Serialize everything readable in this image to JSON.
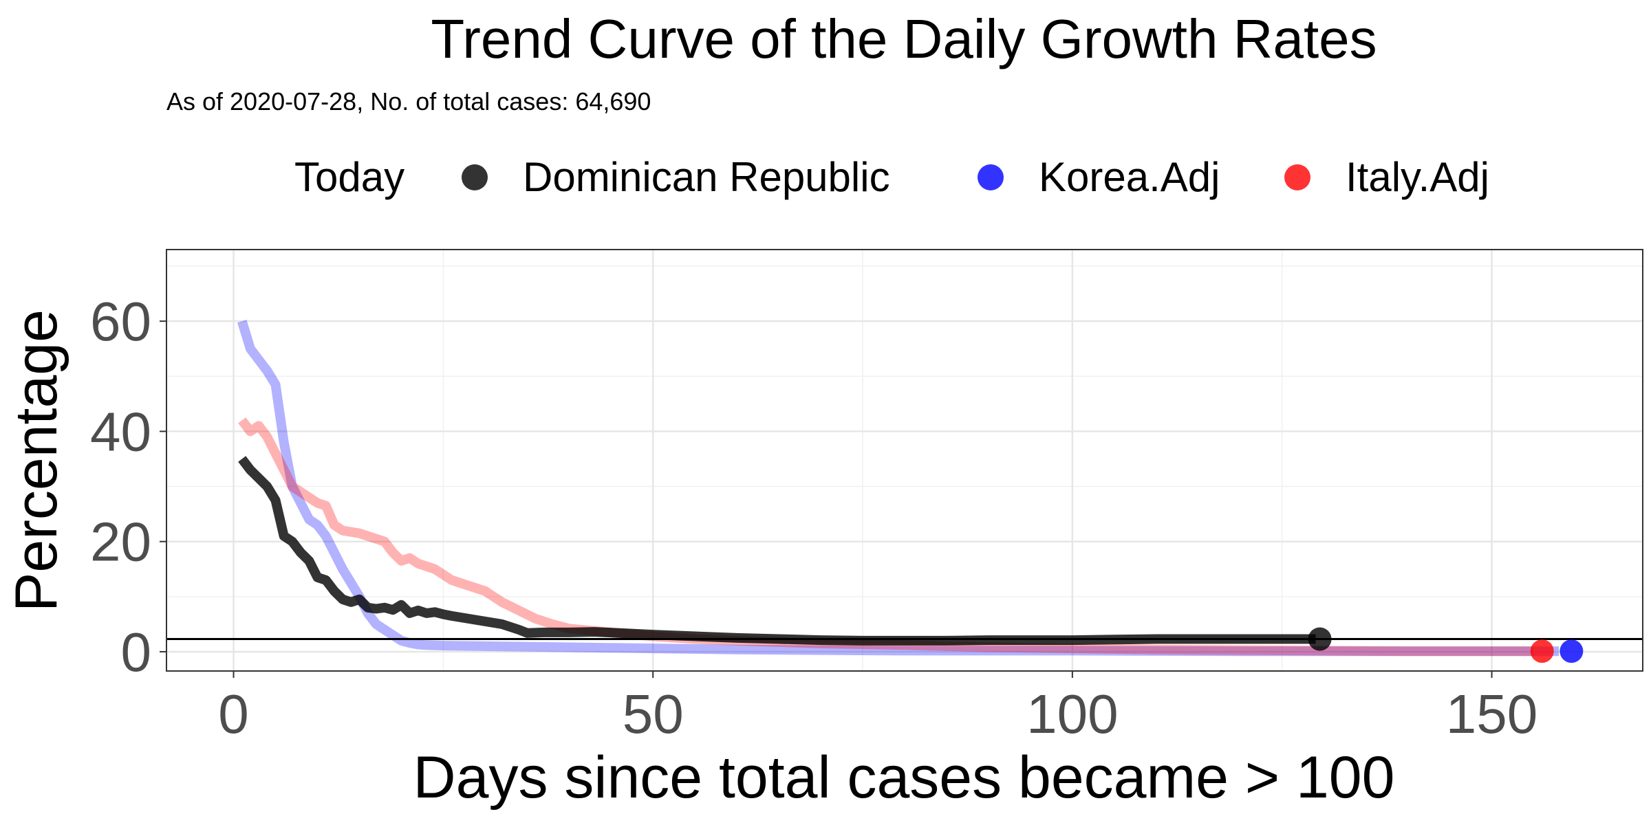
{
  "chart_data": {
    "type": "line",
    "title": "Trend Curve of the Daily Growth Rates",
    "subtitle": "As of 2020-07-28, No. of total cases: 64,690",
    "xlabel": "Days since total cases became > 100",
    "ylabel": "Percentage",
    "xlim": [
      -8,
      168
    ],
    "ylim": [
      -3.5,
      73
    ],
    "x_ticks": [
      0,
      50,
      100,
      150
    ],
    "y_ticks": [
      0,
      20,
      40,
      60
    ],
    "grid": true,
    "legend": {
      "title": "Today",
      "position": "top",
      "entries": [
        {
          "label": "Dominican Republic",
          "color": "#000000"
        },
        {
          "label": "Korea.Adj",
          "color": "#0000ff"
        },
        {
          "label": "Italy.Adj",
          "color": "#ff0000"
        }
      ]
    },
    "reference_line_y": 2.3,
    "series": [
      {
        "name": "Korea.Adj",
        "color": "#0000ff",
        "opacity": 0.3,
        "points": [
          [
            1,
            60
          ],
          [
            2,
            55
          ],
          [
            3,
            53
          ],
          [
            4,
            51
          ],
          [
            5,
            48.5
          ],
          [
            6,
            38
          ],
          [
            7,
            30
          ],
          [
            8,
            27
          ],
          [
            9,
            24
          ],
          [
            10,
            23
          ],
          [
            11,
            21
          ],
          [
            12,
            18
          ],
          [
            13,
            15
          ],
          [
            14,
            12.5
          ],
          [
            15,
            10
          ],
          [
            16,
            7
          ],
          [
            17,
            5
          ],
          [
            18,
            4
          ],
          [
            19,
            3
          ],
          [
            20,
            2
          ],
          [
            21,
            1.6
          ],
          [
            22,
            1.3
          ],
          [
            23,
            1.2
          ],
          [
            25,
            1.1
          ],
          [
            30,
            1.0
          ],
          [
            40,
            0.8
          ],
          [
            50,
            0.6
          ],
          [
            60,
            0.4
          ],
          [
            70,
            0.3
          ],
          [
            80,
            0.2
          ],
          [
            100,
            0.2
          ],
          [
            120,
            0.1
          ],
          [
            140,
            0.1
          ],
          [
            158,
            0.1
          ]
        ],
        "today": {
          "x": 159.5,
          "y": 0.1
        }
      },
      {
        "name": "Italy.Adj",
        "color": "#ff0000",
        "opacity": 0.3,
        "points": [
          [
            1,
            42
          ],
          [
            2,
            40
          ],
          [
            3,
            41
          ],
          [
            4,
            39
          ],
          [
            5,
            36
          ],
          [
            6,
            33
          ],
          [
            7,
            30
          ],
          [
            8,
            29
          ],
          [
            9,
            28
          ],
          [
            10,
            27
          ],
          [
            11,
            26.5
          ],
          [
            12,
            23
          ],
          [
            13,
            22
          ],
          [
            15,
            21.5
          ],
          [
            17,
            20.5
          ],
          [
            18,
            20
          ],
          [
            19,
            18
          ],
          [
            20,
            16.5
          ],
          [
            21,
            17
          ],
          [
            22,
            16
          ],
          [
            24,
            15
          ],
          [
            26,
            13
          ],
          [
            28,
            12
          ],
          [
            30,
            11
          ],
          [
            32,
            9
          ],
          [
            34,
            7.5
          ],
          [
            36,
            6
          ],
          [
            38,
            5
          ],
          [
            40,
            4.2
          ],
          [
            45,
            3.5
          ],
          [
            50,
            2.8
          ],
          [
            55,
            2.3
          ],
          [
            60,
            2
          ],
          [
            70,
            1.5
          ],
          [
            80,
            1.2
          ],
          [
            90,
            0.8
          ],
          [
            100,
            0.6
          ],
          [
            110,
            0.4
          ],
          [
            120,
            0.3
          ],
          [
            130,
            0.2
          ],
          [
            140,
            0.1
          ],
          [
            155,
            0.1
          ]
        ],
        "today": {
          "x": 156,
          "y": 0.1
        }
      },
      {
        "name": "Dominican Republic",
        "color": "#000000",
        "opacity": 0.8,
        "points": [
          [
            1,
            35
          ],
          [
            2,
            33
          ],
          [
            3,
            31.5
          ],
          [
            4,
            30
          ],
          [
            5,
            27.5
          ],
          [
            6,
            21
          ],
          [
            7,
            20
          ],
          [
            8,
            18
          ],
          [
            9,
            16.5
          ],
          [
            10,
            13.5
          ],
          [
            11,
            13
          ],
          [
            12,
            11
          ],
          [
            13,
            9.5
          ],
          [
            14,
            9
          ],
          [
            15,
            9.5
          ],
          [
            16,
            8
          ],
          [
            17,
            7.8
          ],
          [
            18,
            8
          ],
          [
            19,
            7.6
          ],
          [
            20,
            8.5
          ],
          [
            21,
            7
          ],
          [
            22,
            7.5
          ],
          [
            23,
            7
          ],
          [
            24,
            7.2
          ],
          [
            25,
            6.8
          ],
          [
            26,
            6.5
          ],
          [
            28,
            6
          ],
          [
            30,
            5.5
          ],
          [
            32,
            5
          ],
          [
            34,
            4
          ],
          [
            35,
            3.4
          ],
          [
            37,
            3.5
          ],
          [
            40,
            3.5
          ],
          [
            43,
            3.6
          ],
          [
            46,
            3.4
          ],
          [
            50,
            3.1
          ],
          [
            55,
            2.8
          ],
          [
            60,
            2.5
          ],
          [
            65,
            2.3
          ],
          [
            70,
            2.1
          ],
          [
            75,
            2.0
          ],
          [
            80,
            2.0
          ],
          [
            85,
            2.0
          ],
          [
            90,
            2.1
          ],
          [
            95,
            2.1
          ],
          [
            100,
            2.1
          ],
          [
            105,
            2.2
          ],
          [
            110,
            2.3
          ],
          [
            115,
            2.3
          ],
          [
            120,
            2.3
          ],
          [
            125,
            2.3
          ],
          [
            129,
            2.3
          ]
        ],
        "today": {
          "x": 129.5,
          "y": 2.3
        }
      }
    ]
  }
}
